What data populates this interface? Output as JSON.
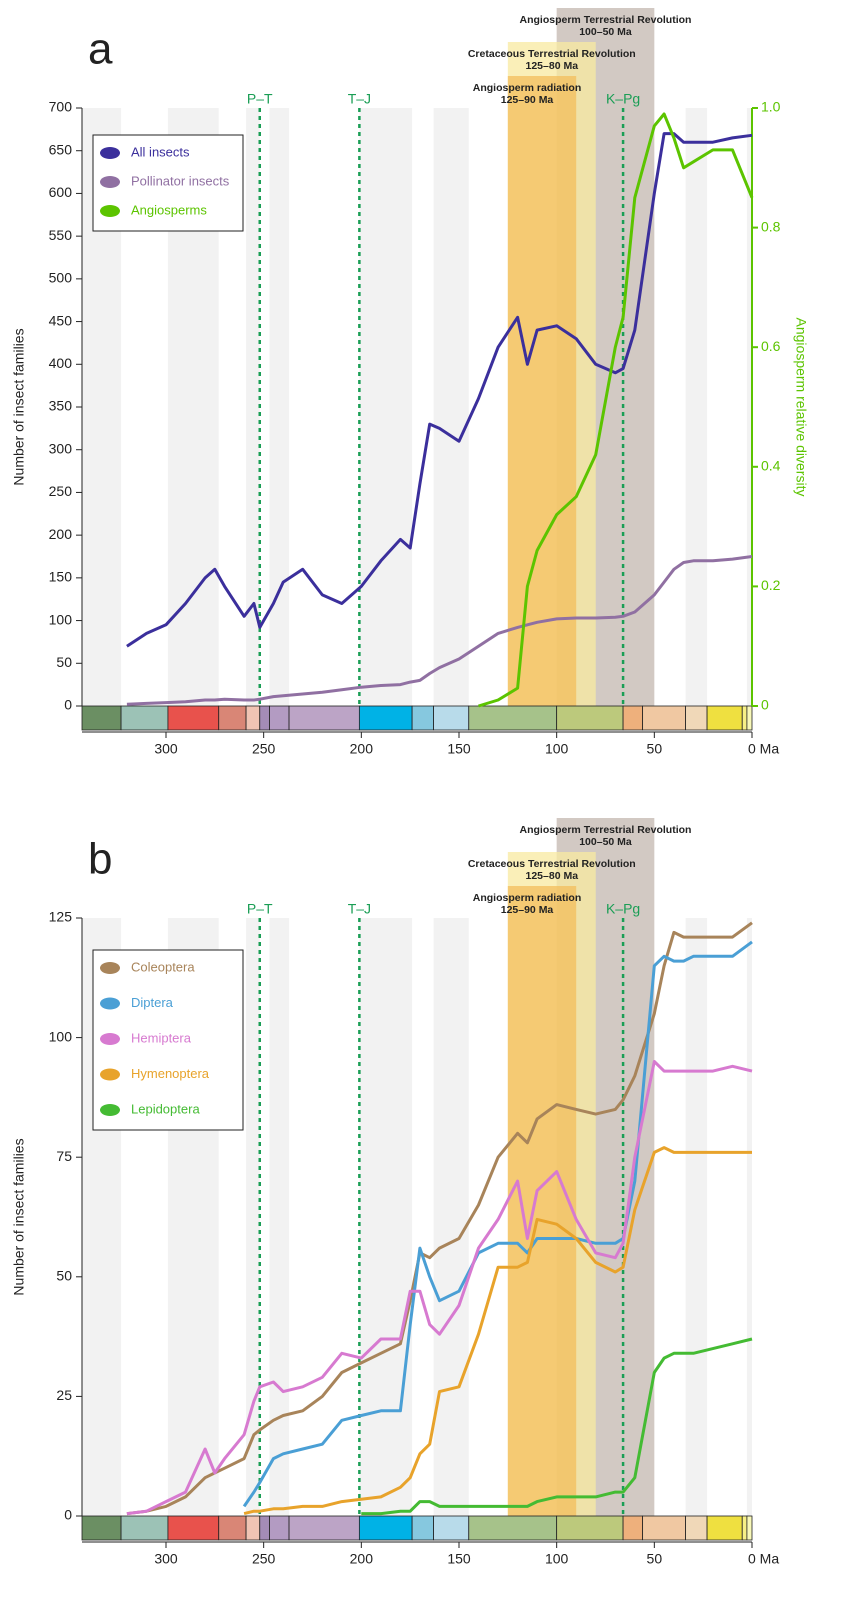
{
  "timescale": {
    "edges": [
      343,
      323,
      299,
      273,
      259,
      252,
      247,
      237,
      201,
      174,
      163,
      145,
      100,
      66,
      56,
      34,
      23,
      5,
      2.6,
      0
    ],
    "colors": [
      "#6b8f63",
      "#9cc2b6",
      "#e8524c",
      "#d98676",
      "#f0c4b4",
      "#a48cb6",
      "#b39bc2",
      "#bca4c6",
      "#00b2e6",
      "#86c8df",
      "#b8dbea",
      "#a6c28a",
      "#bcc97c",
      "#eeb07c",
      "#f0c8a2",
      "#f0d8b8",
      "#efe040",
      "#f6ef86",
      "#f8f8b8"
    ]
  },
  "stripes": [
    [
      343,
      323
    ],
    [
      299,
      273
    ],
    [
      259,
      252
    ],
    [
      247,
      237
    ],
    [
      201,
      174
    ],
    [
      163,
      145
    ],
    [
      34,
      23
    ],
    [
      2.6,
      0
    ]
  ],
  "chart_data": [
    {
      "type": "line",
      "panel_label": "a",
      "ylabel": "Number of insect families",
      "y2label": "Angiosperm relative diversity",
      "xlim": [
        343,
        0
      ],
      "xticks": [
        300,
        250,
        200,
        150,
        100,
        50,
        {
          "value": 0,
          "label": "0 Ma"
        }
      ],
      "ylim": [
        0,
        700
      ],
      "yticks": [
        0,
        50,
        100,
        150,
        200,
        250,
        300,
        350,
        400,
        450,
        500,
        550,
        600,
        650,
        700
      ],
      "y2lim": [
        0,
        1
      ],
      "y2ticks": [
        0,
        0.2,
        0.4,
        0.6,
        0.8,
        {
          "value": 1,
          "label": "1.0"
        }
      ],
      "y2color": "#5cc400",
      "bands": [
        {
          "title": "Angiosperm Terrestrial Revolution",
          "range_label": "100–50 Ma",
          "range": [
            100,
            50
          ],
          "color": "#cdc3bd"
        },
        {
          "title": "Cretaceous Terrestrial Revolution",
          "range_label": "125–80 Ma",
          "range": [
            125,
            80
          ],
          "color": "#f8eaa0"
        },
        {
          "title": "Angiosperm radiation",
          "range_label": "125–90 Ma",
          "range": [
            125,
            90
          ],
          "color": "#f3bd5c"
        }
      ],
      "events": [
        {
          "label": "P–T",
          "x": 252
        },
        {
          "label": "T–J",
          "x": 201
        },
        {
          "label": "K–Pg",
          "x": 66
        }
      ],
      "x": [
        330,
        320,
        310,
        300,
        290,
        280,
        275,
        270,
        260,
        255,
        252,
        245,
        240,
        230,
        220,
        210,
        200,
        190,
        180,
        175,
        170,
        165,
        160,
        150,
        140,
        130,
        120,
        115,
        110,
        100,
        90,
        80,
        70,
        66,
        60,
        50,
        45,
        40,
        35,
        30,
        20,
        10,
        0
      ],
      "series": [
        {
          "name": "All insects",
          "color": "#3b2f9c",
          "values": [
            null,
            70,
            85,
            95,
            120,
            150,
            160,
            140,
            105,
            120,
            92,
            120,
            145,
            160,
            130,
            120,
            140,
            170,
            195,
            185,
            260,
            330,
            325,
            310,
            360,
            420,
            455,
            400,
            440,
            445,
            430,
            400,
            390,
            395,
            440,
            600,
            670,
            670,
            660,
            660,
            660,
            665,
            668
          ]
        },
        {
          "name": "Pollinator insects",
          "color": "#9070a2",
          "values": [
            null,
            2,
            3,
            4,
            5,
            7,
            7,
            8,
            7,
            7,
            8,
            11,
            12,
            14,
            16,
            19,
            22,
            24,
            25,
            28,
            30,
            38,
            45,
            55,
            70,
            85,
            92,
            95,
            98,
            102,
            103,
            103,
            104,
            105,
            110,
            130,
            145,
            160,
            168,
            170,
            170,
            172,
            175
          ]
        },
        {
          "name": "Angiosperms",
          "color": "#5cc400",
          "axis": "y2",
          "values": [
            null,
            null,
            null,
            null,
            null,
            null,
            null,
            null,
            null,
            null,
            null,
            null,
            null,
            null,
            null,
            null,
            null,
            null,
            null,
            null,
            null,
            null,
            null,
            null,
            0,
            0.01,
            0.03,
            0.2,
            0.26,
            0.32,
            0.35,
            0.42,
            0.6,
            0.65,
            0.85,
            0.97,
            0.99,
            0.95,
            0.9,
            0.91,
            0.93,
            0.93,
            0.85
          ]
        }
      ]
    },
    {
      "type": "line",
      "panel_label": "b",
      "ylabel": "Number of insect families",
      "xlim": [
        343,
        0
      ],
      "xticks": [
        300,
        250,
        200,
        150,
        100,
        50,
        {
          "value": 0,
          "label": "0 Ma"
        }
      ],
      "ylim": [
        0,
        125
      ],
      "yticks": [
        0,
        25,
        50,
        75,
        100,
        125
      ],
      "bands": [
        {
          "title": "Angiosperm Terrestrial Revolution",
          "range_label": "100–50 Ma",
          "range": [
            100,
            50
          ],
          "color": "#cdc3bd"
        },
        {
          "title": "Cretaceous Terrestrial Revolution",
          "range_label": "125–80 Ma",
          "range": [
            125,
            80
          ],
          "color": "#f8eaa0"
        },
        {
          "title": "Angiosperm radiation",
          "range_label": "125–90 Ma",
          "range": [
            125,
            90
          ],
          "color": "#f3bd5c"
        }
      ],
      "events": [
        {
          "label": "P–T",
          "x": 252
        },
        {
          "label": "T–J",
          "x": 201
        },
        {
          "label": "K–Pg",
          "x": 66
        }
      ],
      "x": [
        330,
        320,
        310,
        300,
        290,
        280,
        275,
        270,
        260,
        255,
        252,
        245,
        240,
        230,
        220,
        210,
        200,
        190,
        180,
        175,
        170,
        165,
        160,
        150,
        140,
        130,
        120,
        115,
        110,
        100,
        90,
        80,
        70,
        66,
        60,
        50,
        45,
        40,
        35,
        30,
        20,
        10,
        0
      ],
      "series": [
        {
          "name": "Coleoptera",
          "color": "#a8845a",
          "values": [
            null,
            0.5,
            1,
            2,
            4,
            8,
            9,
            10,
            12,
            17,
            18,
            20,
            21,
            22,
            25,
            30,
            32,
            34,
            36,
            45,
            55,
            54,
            56,
            58,
            65,
            75,
            80,
            78,
            83,
            86,
            85,
            84,
            85,
            87,
            92,
            105,
            115,
            122,
            121,
            121,
            121,
            121,
            124
          ]
        },
        {
          "name": "Diptera",
          "color": "#4a9fd5",
          "values": [
            null,
            null,
            null,
            null,
            null,
            null,
            null,
            null,
            2,
            5,
            7,
            12,
            13,
            14,
            15,
            20,
            21,
            22,
            22,
            40,
            56,
            50,
            45,
            47,
            55,
            57,
            57,
            55,
            58,
            58,
            58,
            57,
            57,
            58,
            70,
            115,
            117,
            116,
            116,
            117,
            117,
            117,
            120
          ]
        },
        {
          "name": "Hemiptera",
          "color": "#d77ad0",
          "values": [
            null,
            0.5,
            1,
            3,
            5,
            14,
            9,
            12,
            17,
            24,
            27,
            28,
            26,
            27,
            29,
            34,
            33,
            37,
            37,
            47,
            47,
            40,
            38,
            44,
            56,
            62,
            70,
            58,
            68,
            72,
            62,
            55,
            54,
            57,
            75,
            95,
            93,
            93,
            93,
            93,
            93,
            94,
            93
          ]
        },
        {
          "name": "Hymenoptera",
          "color": "#e8a32b",
          "values": [
            null,
            null,
            null,
            null,
            null,
            null,
            null,
            null,
            0.5,
            1,
            1,
            1.5,
            1.5,
            2,
            2,
            3,
            3.5,
            4,
            6,
            8,
            13,
            15,
            26,
            27,
            38,
            52,
            52,
            53,
            62,
            61,
            58,
            53,
            51,
            52,
            64,
            76,
            77,
            76,
            76,
            76,
            76,
            76,
            76
          ]
        },
        {
          "name": "Lepidoptera",
          "color": "#44bb33",
          "values": [
            null,
            null,
            null,
            null,
            null,
            null,
            null,
            null,
            null,
            null,
            null,
            null,
            null,
            null,
            null,
            null,
            0.5,
            0.5,
            1,
            1,
            3,
            3,
            2,
            2,
            2,
            2,
            2,
            2,
            3,
            4,
            4,
            4,
            5,
            5,
            8,
            30,
            33,
            34,
            34,
            34,
            35,
            36,
            37
          ]
        }
      ]
    }
  ]
}
